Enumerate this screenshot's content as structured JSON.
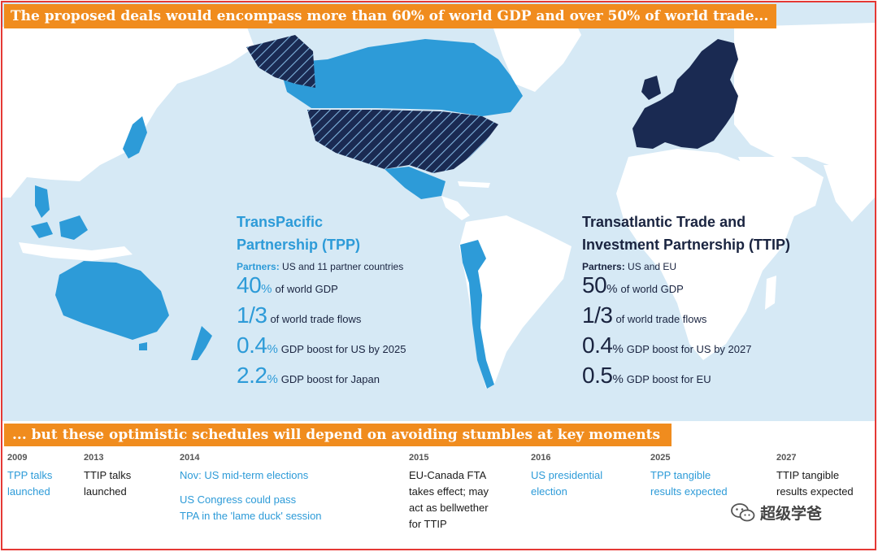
{
  "banners": {
    "top": "The proposed deals would encompass more than 60% of world GDP and over 50% of world trade...",
    "middle": "... but  these optimistic schedules will depend on avoiding stumbles at key moments"
  },
  "tpp": {
    "heading_line1": "TransPacific",
    "heading_line2": "Partnership (TPP)",
    "partners_label": "Partners:",
    "partners_value": "US and 11 partner countries",
    "stats": [
      {
        "big": "40",
        "unit": "%",
        "desc": "of world GDP"
      },
      {
        "big": "1/3",
        "unit": "",
        "desc": "of world trade flows"
      },
      {
        "big": "0.4",
        "unit": "%",
        "desc": "GDP boost for US by 2025"
      },
      {
        "big": "2.2",
        "unit": "%",
        "desc": "GDP boost for Japan"
      }
    ]
  },
  "ttip": {
    "heading_line1": "Transatlantic Trade and",
    "heading_line2": "Investment Partnership (TTIP)",
    "partners_label": "Partners:",
    "partners_value": "US and EU",
    "stats": [
      {
        "big": "50",
        "unit": "%",
        "desc": "of world GDP"
      },
      {
        "big": "1/3",
        "unit": "",
        "desc": "of world trade flows"
      },
      {
        "big": "0.4",
        "unit": "%",
        "desc": "GDP boost for US by 2027"
      },
      {
        "big": "0.5",
        "unit": "%",
        "desc": "GDP boost for EU"
      }
    ]
  },
  "timeline": [
    {
      "year": "2009",
      "events": [
        {
          "text": "TPP talks\nlaunched",
          "color": "blue"
        }
      ]
    },
    {
      "year": "2013",
      "events": [
        {
          "text": "TTIP talks\nlaunched",
          "color": "dark"
        }
      ]
    },
    {
      "year": "2014",
      "events": [
        {
          "text": "Nov: US mid-term elections",
          "color": "blue"
        },
        {
          "text": "US Congress could pass\nTPA in the 'lame duck' session",
          "color": "blue"
        }
      ]
    },
    {
      "year": "2015",
      "events": [
        {
          "text": "EU-Canada FTA\ntakes effect; may\nact as bellwether\nfor TTIP",
          "color": "dark"
        }
      ]
    },
    {
      "year": "2016",
      "events": [
        {
          "text": "US presidential\nelection",
          "color": "blue"
        }
      ]
    },
    {
      "year": "2025",
      "events": [
        {
          "text": "TPP tangible\nresults expected",
          "color": "blue"
        }
      ]
    },
    {
      "year": "2027",
      "events": [
        {
          "text": "TTIP tangible\nresults expected",
          "color": "dark"
        }
      ]
    }
  ],
  "watermark": {
    "text": "超级学爸",
    "icon": "wechat-icon"
  },
  "colors": {
    "ocean": "#d6e9f5",
    "land": "#ffffff",
    "tpp": "#2d9bd8",
    "ttip": "#1a2a52",
    "banner": "#f08c1e",
    "frame": "#e53935"
  }
}
